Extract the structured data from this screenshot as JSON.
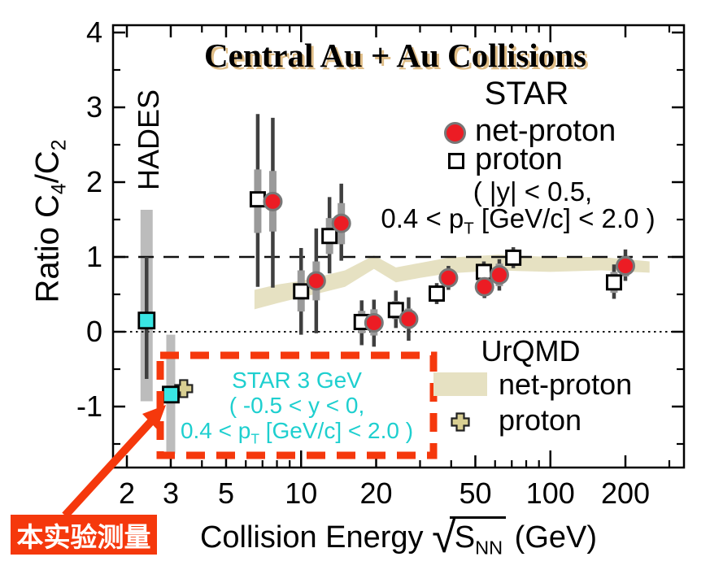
{
  "colors": {
    "red_marker": "#ec1c24",
    "cyan_marker": "#39e6e4",
    "cyan_text": "#1ecfcf",
    "urqmd_band": "#e6e1c2",
    "cross_fill": "#d9cf92",
    "stat_bar": "#3f3f3f",
    "syst_bar": "#9a9a9a",
    "wide_band": "#bcbcbc",
    "accent_red": "#f5380c",
    "title_shadow": "#dfbc85"
  },
  "title": {
    "text": "Central Au + Au Collisions"
  },
  "hades_label": "HADES",
  "star_legend": {
    "title": "STAR",
    "net_proton": "net-proton",
    "proton": "proton",
    "cut_line1": "( |y| < 0.5,",
    "cut_line2_prefix": "0.4 < p",
    "cut_line2_sub": "T",
    "cut_line2_suffix": " [GeV/c] < 2.0 )"
  },
  "urqmd_legend": {
    "title": "UrQMD",
    "net_proton": "net-proton",
    "proton": "proton"
  },
  "annotation_box": {
    "line1": "STAR 3 GeV",
    "line2": "( -0.5 < y < 0,",
    "line3_prefix": "0.4 < p",
    "line3_sub": "T",
    "line3_suffix": " [GeV/c] < 2.0 )"
  },
  "callout": {
    "text": "本实验测量"
  },
  "x_axis_label": {
    "prefix": "Collision Energy ",
    "radical": "√",
    "symbol": "S",
    "subscript": "NN",
    "suffix": " (GeV)"
  },
  "y_axis_label": {
    "prefix": "Ratio C",
    "sub1": "4",
    "mid": "/C",
    "sub2": "2"
  },
  "chart_data": {
    "type": "scatter",
    "title": "Central Au + Au Collisions",
    "xlabel": "Collision Energy sqrt(S_NN) (GeV)",
    "ylabel": "Ratio C4/C2",
    "x_scale": "log",
    "x_range": [
      1.76,
      345
    ],
    "y_range": [
      -1.82,
      4.1
    ],
    "grid": false,
    "x_axis": {
      "major_ticks": [
        {
          "value": 2,
          "label": "2"
        },
        {
          "value": 3,
          "label": "3"
        },
        {
          "value": 5,
          "label": "5"
        },
        {
          "value": 10,
          "label": "10"
        },
        {
          "value": 20,
          "label": "20"
        },
        {
          "value": 50,
          "label": "50"
        },
        {
          "value": 100,
          "label": "100"
        },
        {
          "value": 200,
          "label": "200"
        }
      ],
      "minor_ticks": [
        4,
        6,
        7,
        8,
        9,
        30,
        40,
        60,
        70,
        80,
        90,
        300
      ]
    },
    "y_axis": {
      "major_ticks": [
        {
          "value": -1,
          "label": "-1"
        },
        {
          "value": 0,
          "label": "0"
        },
        {
          "value": 1,
          "label": "1"
        },
        {
          "value": 2,
          "label": "2"
        },
        {
          "value": 3,
          "label": "3"
        },
        {
          "value": 4,
          "label": "4"
        }
      ],
      "minor_ticks": [
        -1.5,
        -0.5,
        0.5,
        1.5,
        2.5,
        3.5
      ]
    },
    "reference_lines": [
      {
        "y": 1,
        "style": "dashed"
      },
      {
        "y": 0,
        "style": "dotted"
      }
    ],
    "band": {
      "name": "UrQMD net-proton",
      "points": [
        [
          6.5,
          0.3,
          0.56
        ],
        [
          8,
          0.38,
          0.63
        ],
        [
          10,
          0.46,
          0.68
        ],
        [
          12,
          0.52,
          0.74
        ],
        [
          15,
          0.6,
          0.82
        ],
        [
          19.6,
          0.84,
          1.02
        ],
        [
          24,
          0.66,
          0.86
        ],
        [
          30,
          0.72,
          0.92
        ],
        [
          39,
          0.78,
          0.99
        ],
        [
          62,
          0.82,
          1.03
        ],
        [
          100,
          0.8,
          1.0
        ],
        [
          160,
          0.82,
          1.0
        ],
        [
          250,
          0.79,
          0.94
        ]
      ]
    },
    "series": [
      {
        "name": "STAR proton",
        "marker": "open-square",
        "points": [
          {
            "x": 6.7,
            "y": 1.77,
            "stat": [
              0.6,
              2.91
            ],
            "syst": [
              1.32,
              2.17
            ]
          },
          {
            "x": 10.0,
            "y": 0.54,
            "stat": [
              -0.04,
              1.12
            ],
            "syst": [
              0.27,
              0.82
            ]
          },
          {
            "x": 13.0,
            "y": 1.28,
            "stat": [
              0.78,
              1.8
            ],
            "syst": [
              1.04,
              1.52
            ]
          },
          {
            "x": 17.5,
            "y": 0.13,
            "stat": [
              -0.18,
              0.42
            ],
            "syst": [
              -0.02,
              0.28
            ]
          },
          {
            "x": 24,
            "y": 0.29,
            "stat": [
              0.05,
              0.55
            ],
            "syst": [
              0.17,
              0.41
            ]
          },
          {
            "x": 35,
            "y": 0.51,
            "stat": [
              0.37,
              0.65
            ],
            "syst": [
              0.41,
              0.61
            ]
          },
          {
            "x": 54.1,
            "y": 0.8,
            "stat": [
              0.66,
              0.94
            ],
            "syst": [
              0.7,
              0.9
            ]
          },
          {
            "x": 71,
            "y": 0.99,
            "stat": [
              0.85,
              1.13
            ],
            "syst": [
              0.88,
              1.1
            ]
          },
          {
            "x": 180,
            "y": 0.66,
            "stat": [
              0.44,
              0.9
            ],
            "syst": [
              0.52,
              0.8
            ]
          }
        ]
      },
      {
        "name": "STAR net-proton",
        "marker": "filled-circle",
        "points": [
          {
            "x": 7.7,
            "y": 1.74,
            "stat": [
              0.59,
              2.86
            ],
            "syst": [
              1.34,
              2.15
            ]
          },
          {
            "x": 11.5,
            "y": 0.68,
            "stat": [
              -0.02,
              1.38
            ],
            "syst": [
              0.42,
              0.94
            ]
          },
          {
            "x": 14.5,
            "y": 1.45,
            "stat": [
              0.95,
              1.98
            ],
            "syst": [
              1.17,
              1.72
            ]
          },
          {
            "x": 19.6,
            "y": 0.12,
            "stat": [
              -0.2,
              0.43
            ],
            "syst": [
              -0.05,
              0.3
            ]
          },
          {
            "x": 27,
            "y": 0.17,
            "stat": [
              -0.12,
              0.46
            ],
            "syst": [
              0.04,
              0.31
            ]
          },
          {
            "x": 39,
            "y": 0.72,
            "stat": [
              0.56,
              0.88
            ],
            "syst": [
              0.6,
              0.84
            ]
          },
          {
            "x": 54.4,
            "y": 0.6,
            "stat": [
              0.45,
              0.75
            ],
            "syst": [
              0.49,
              0.71
            ]
          },
          {
            "x": 62.4,
            "y": 0.76,
            "stat": [
              0.55,
              0.97
            ],
            "syst": [
              0.61,
              0.91
            ]
          },
          {
            "x": 200,
            "y": 0.88,
            "stat": [
              0.68,
              1.1
            ],
            "syst": [
              0.74,
              1.01
            ]
          }
        ]
      },
      {
        "name": "UrQMD proton 3 GeV",
        "marker": "cross",
        "points": [
          {
            "x": 3.38,
            "y": -0.76
          }
        ]
      },
      {
        "name": "HADES proton",
        "marker": "cyan-square",
        "wide_width": 15,
        "points": [
          {
            "x": 2.4,
            "y": 0.15,
            "stat": [
              -0.63,
              1.0
            ],
            "wide": [
              -0.93,
              1.63
            ]
          }
        ]
      },
      {
        "name": "STAR 3 GeV proton",
        "marker": "cyan-square",
        "wide_width": 11,
        "points": [
          {
            "x": 3.0,
            "y": -0.84,
            "wide": [
              -1.63,
              -0.04
            ]
          }
        ]
      }
    ]
  }
}
